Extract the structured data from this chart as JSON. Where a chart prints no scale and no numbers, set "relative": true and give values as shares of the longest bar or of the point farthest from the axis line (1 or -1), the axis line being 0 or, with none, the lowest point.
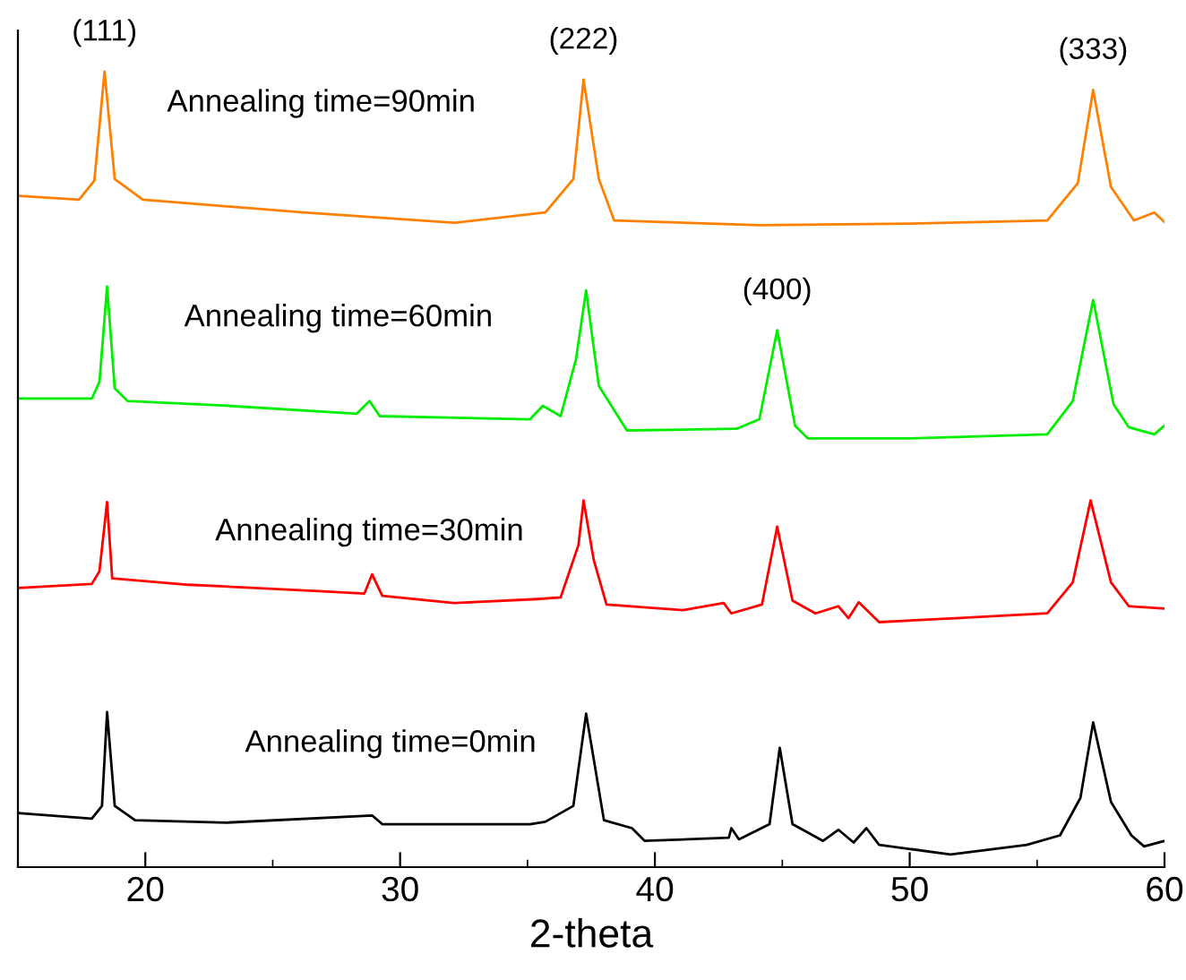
{
  "chart_data": {
    "type": "line",
    "relative": true,
    "xlabel": "2-theta",
    "xlim": [
      15,
      60
    ],
    "xticks": [
      20,
      {
        "value": 25,
        "label": null
      },
      30,
      {
        "value": 35,
        "label": null
      },
      40,
      {
        "value": 45,
        "label": null
      },
      50,
      {
        "value": 55,
        "label": null
      },
      60
    ],
    "grid": false,
    "legend": false,
    "marker": "none",
    "line_style": "solid",
    "series": [
      {
        "name": "Annealing time=90min",
        "color": "#ff8000",
        "x": [
          15.0,
          17.4,
          18.0,
          18.4,
          18.8,
          19.9,
          26.2,
          32.1,
          35.7,
          36.8,
          37.2,
          37.8,
          38.4,
          44.1,
          50.0,
          55.4,
          56.6,
          57.2,
          57.9,
          58.8,
          59.6,
          60.0
        ],
        "values": [
          0.844,
          0.839,
          0.863,
          1.0,
          0.865,
          0.839,
          0.823,
          0.81,
          0.823,
          0.865,
          0.99,
          0.865,
          0.813,
          0.807,
          0.809,
          0.813,
          0.86,
          0.977,
          0.855,
          0.813,
          0.823,
          0.811
        ]
      },
      {
        "name": "Annealing time=60min",
        "color": "#00ee00",
        "x": [
          15.0,
          17.9,
          18.2,
          18.5,
          18.8,
          19.3,
          23.2,
          28.3,
          28.8,
          29.2,
          35.1,
          35.6,
          36.3,
          36.9,
          37.3,
          37.8,
          38.9,
          43.2,
          44.1,
          44.8,
          45.5,
          46.0,
          50.0,
          55.4,
          56.4,
          57.2,
          58.0,
          58.6,
          59.6,
          60.0
        ],
        "values": [
          0.589,
          0.589,
          0.61,
          0.73,
          0.602,
          0.586,
          0.58,
          0.57,
          0.586,
          0.567,
          0.563,
          0.58,
          0.567,
          0.638,
          0.725,
          0.605,
          0.549,
          0.551,
          0.563,
          0.675,
          0.555,
          0.539,
          0.539,
          0.544,
          0.586,
          0.713,
          0.582,
          0.553,
          0.544,
          0.555
        ]
      },
      {
        "name": "Annealing time=30min",
        "color": "#ff0000",
        "x": [
          15.0,
          17.9,
          18.2,
          18.5,
          18.7,
          21.7,
          26.8,
          28.6,
          28.9,
          29.3,
          32.1,
          35.4,
          36.3,
          37.0,
          37.2,
          37.6,
          38.1,
          41.1,
          42.7,
          43.0,
          44.2,
          44.8,
          45.4,
          46.3,
          47.2,
          47.6,
          48.0,
          48.8,
          51.8,
          55.4,
          56.4,
          57.1,
          57.9,
          58.6,
          60.0
        ],
        "values": [
          0.351,
          0.356,
          0.372,
          0.459,
          0.363,
          0.355,
          0.347,
          0.344,
          0.368,
          0.341,
          0.332,
          0.337,
          0.339,
          0.405,
          0.461,
          0.386,
          0.33,
          0.323,
          0.332,
          0.319,
          0.33,
          0.428,
          0.335,
          0.319,
          0.328,
          0.313,
          0.333,
          0.308,
          0.313,
          0.319,
          0.358,
          0.461,
          0.358,
          0.328,
          0.325
        ]
      },
      {
        "name": "Annealing time=0min",
        "color": "#000000",
        "x": [
          15.0,
          17.9,
          18.3,
          18.5,
          18.8,
          19.6,
          23.2,
          28.9,
          29.3,
          35.1,
          35.7,
          36.8,
          37.3,
          38.0,
          39.1,
          39.6,
          42.9,
          43.0,
          43.3,
          44.5,
          44.9,
          45.4,
          46.6,
          47.2,
          47.8,
          48.3,
          48.8,
          51.6,
          54.6,
          55.9,
          56.7,
          57.2,
          57.9,
          58.7,
          59.2,
          60.0
        ],
        "values": [
          0.068,
          0.061,
          0.077,
          0.195,
          0.077,
          0.059,
          0.056,
          0.065,
          0.054,
          0.054,
          0.057,
          0.077,
          0.193,
          0.059,
          0.049,
          0.033,
          0.037,
          0.049,
          0.035,
          0.054,
          0.15,
          0.054,
          0.033,
          0.047,
          0.031,
          0.049,
          0.028,
          0.016,
          0.028,
          0.04,
          0.087,
          0.182,
          0.082,
          0.04,
          0.026,
          0.033
        ]
      }
    ],
    "annotations": [
      {
        "text": "(111)",
        "x": 18.4,
        "y": 1.0
      },
      {
        "text": "(222)",
        "x": 37.2,
        "y": 0.99
      },
      {
        "text": "(333)",
        "x": 57.2,
        "y": 0.977
      },
      {
        "text": "(400)",
        "x": 44.8,
        "y": 0.675
      }
    ]
  }
}
